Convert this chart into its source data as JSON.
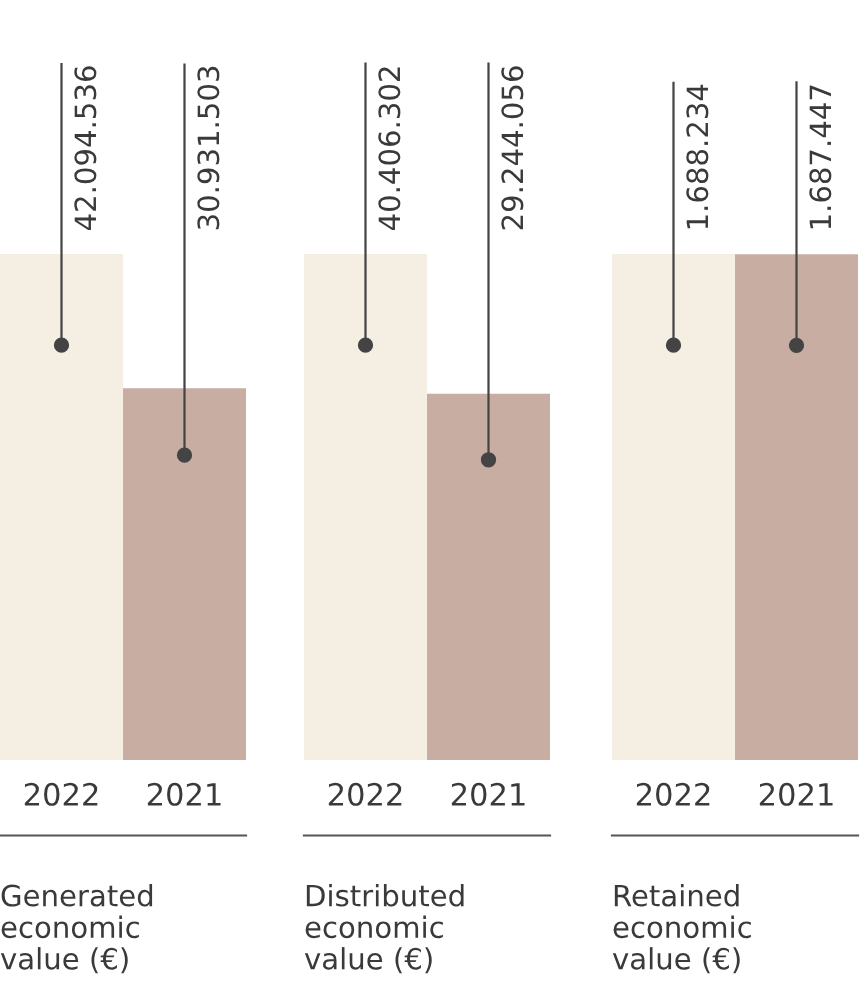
{
  "chart_data": [
    {
      "type": "bar",
      "xlabel": "Generated\neconomic\nvalue (€)",
      "categories": [
        "2022",
        "2021"
      ],
      "values": [
        42094536,
        30931503
      ],
      "value_labels": [
        "42.094.536",
        "30.931.503"
      ],
      "colors": [
        "#f4eee3",
        "#c8ada2"
      ]
    },
    {
      "type": "bar",
      "xlabel": "Distributed\neconomic\nvalue (€)",
      "categories": [
        "2022",
        "2021"
      ],
      "values": [
        40406302,
        29244056
      ],
      "value_labels": [
        "40.406.302",
        "29.244.056"
      ],
      "colors": [
        "#f4eee3",
        "#c8ada2"
      ]
    },
    {
      "type": "bar",
      "xlabel": "Retained\neconomic\nvalue (€)",
      "categories": [
        "2022",
        "2021"
      ],
      "values": [
        1688234,
        1687447
      ],
      "value_labels": [
        "1.688.234",
        "1.687.447"
      ],
      "colors": [
        "#f4eee3",
        "#c8ada2"
      ]
    }
  ]
}
